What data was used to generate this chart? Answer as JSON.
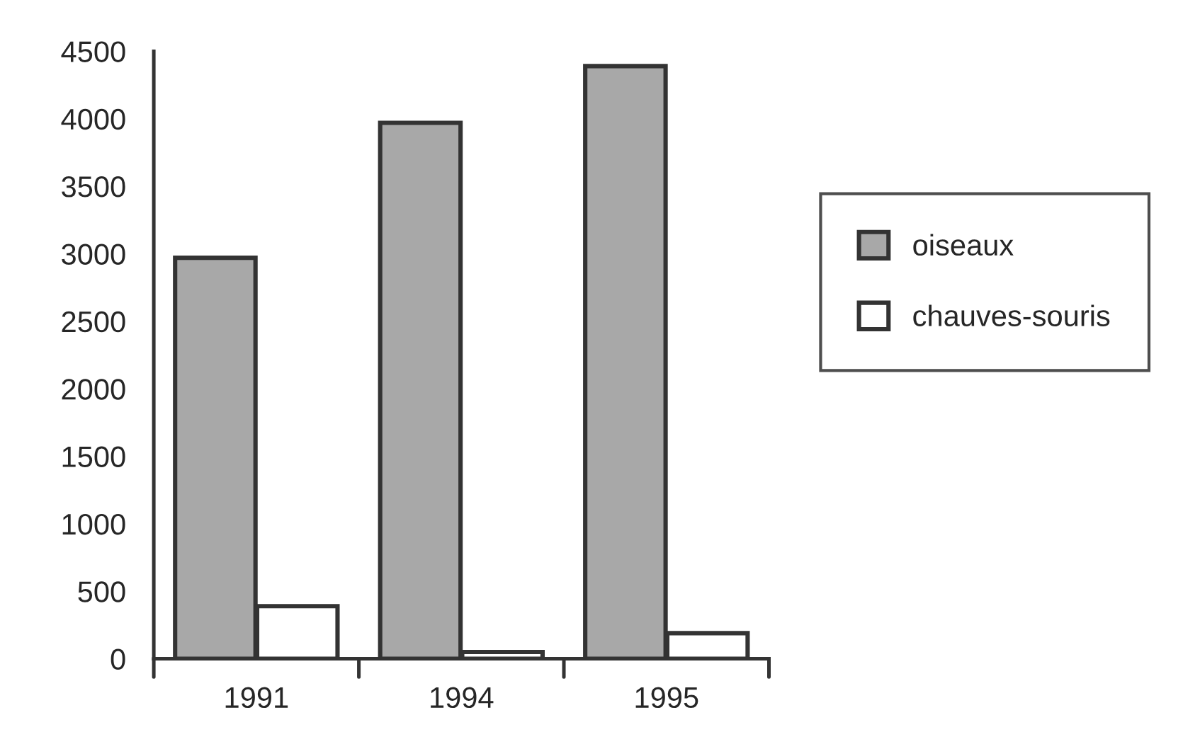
{
  "chart_data": {
    "type": "bar",
    "categories": [
      "1991",
      "1994",
      "1995"
    ],
    "series": [
      {
        "name": "oiseaux",
        "color": "#a8a8a8",
        "values": [
          2970,
          3970,
          4390
        ]
      },
      {
        "name": "chauves-souris",
        "color": "#ffffff",
        "values": [
          390,
          50,
          190
        ]
      }
    ],
    "ylim": [
      0,
      4500
    ],
    "yticks": [
      0,
      500,
      1000,
      1500,
      2000,
      2500,
      3000,
      3500,
      4000,
      4500
    ],
    "grid": false,
    "legend": "right"
  }
}
